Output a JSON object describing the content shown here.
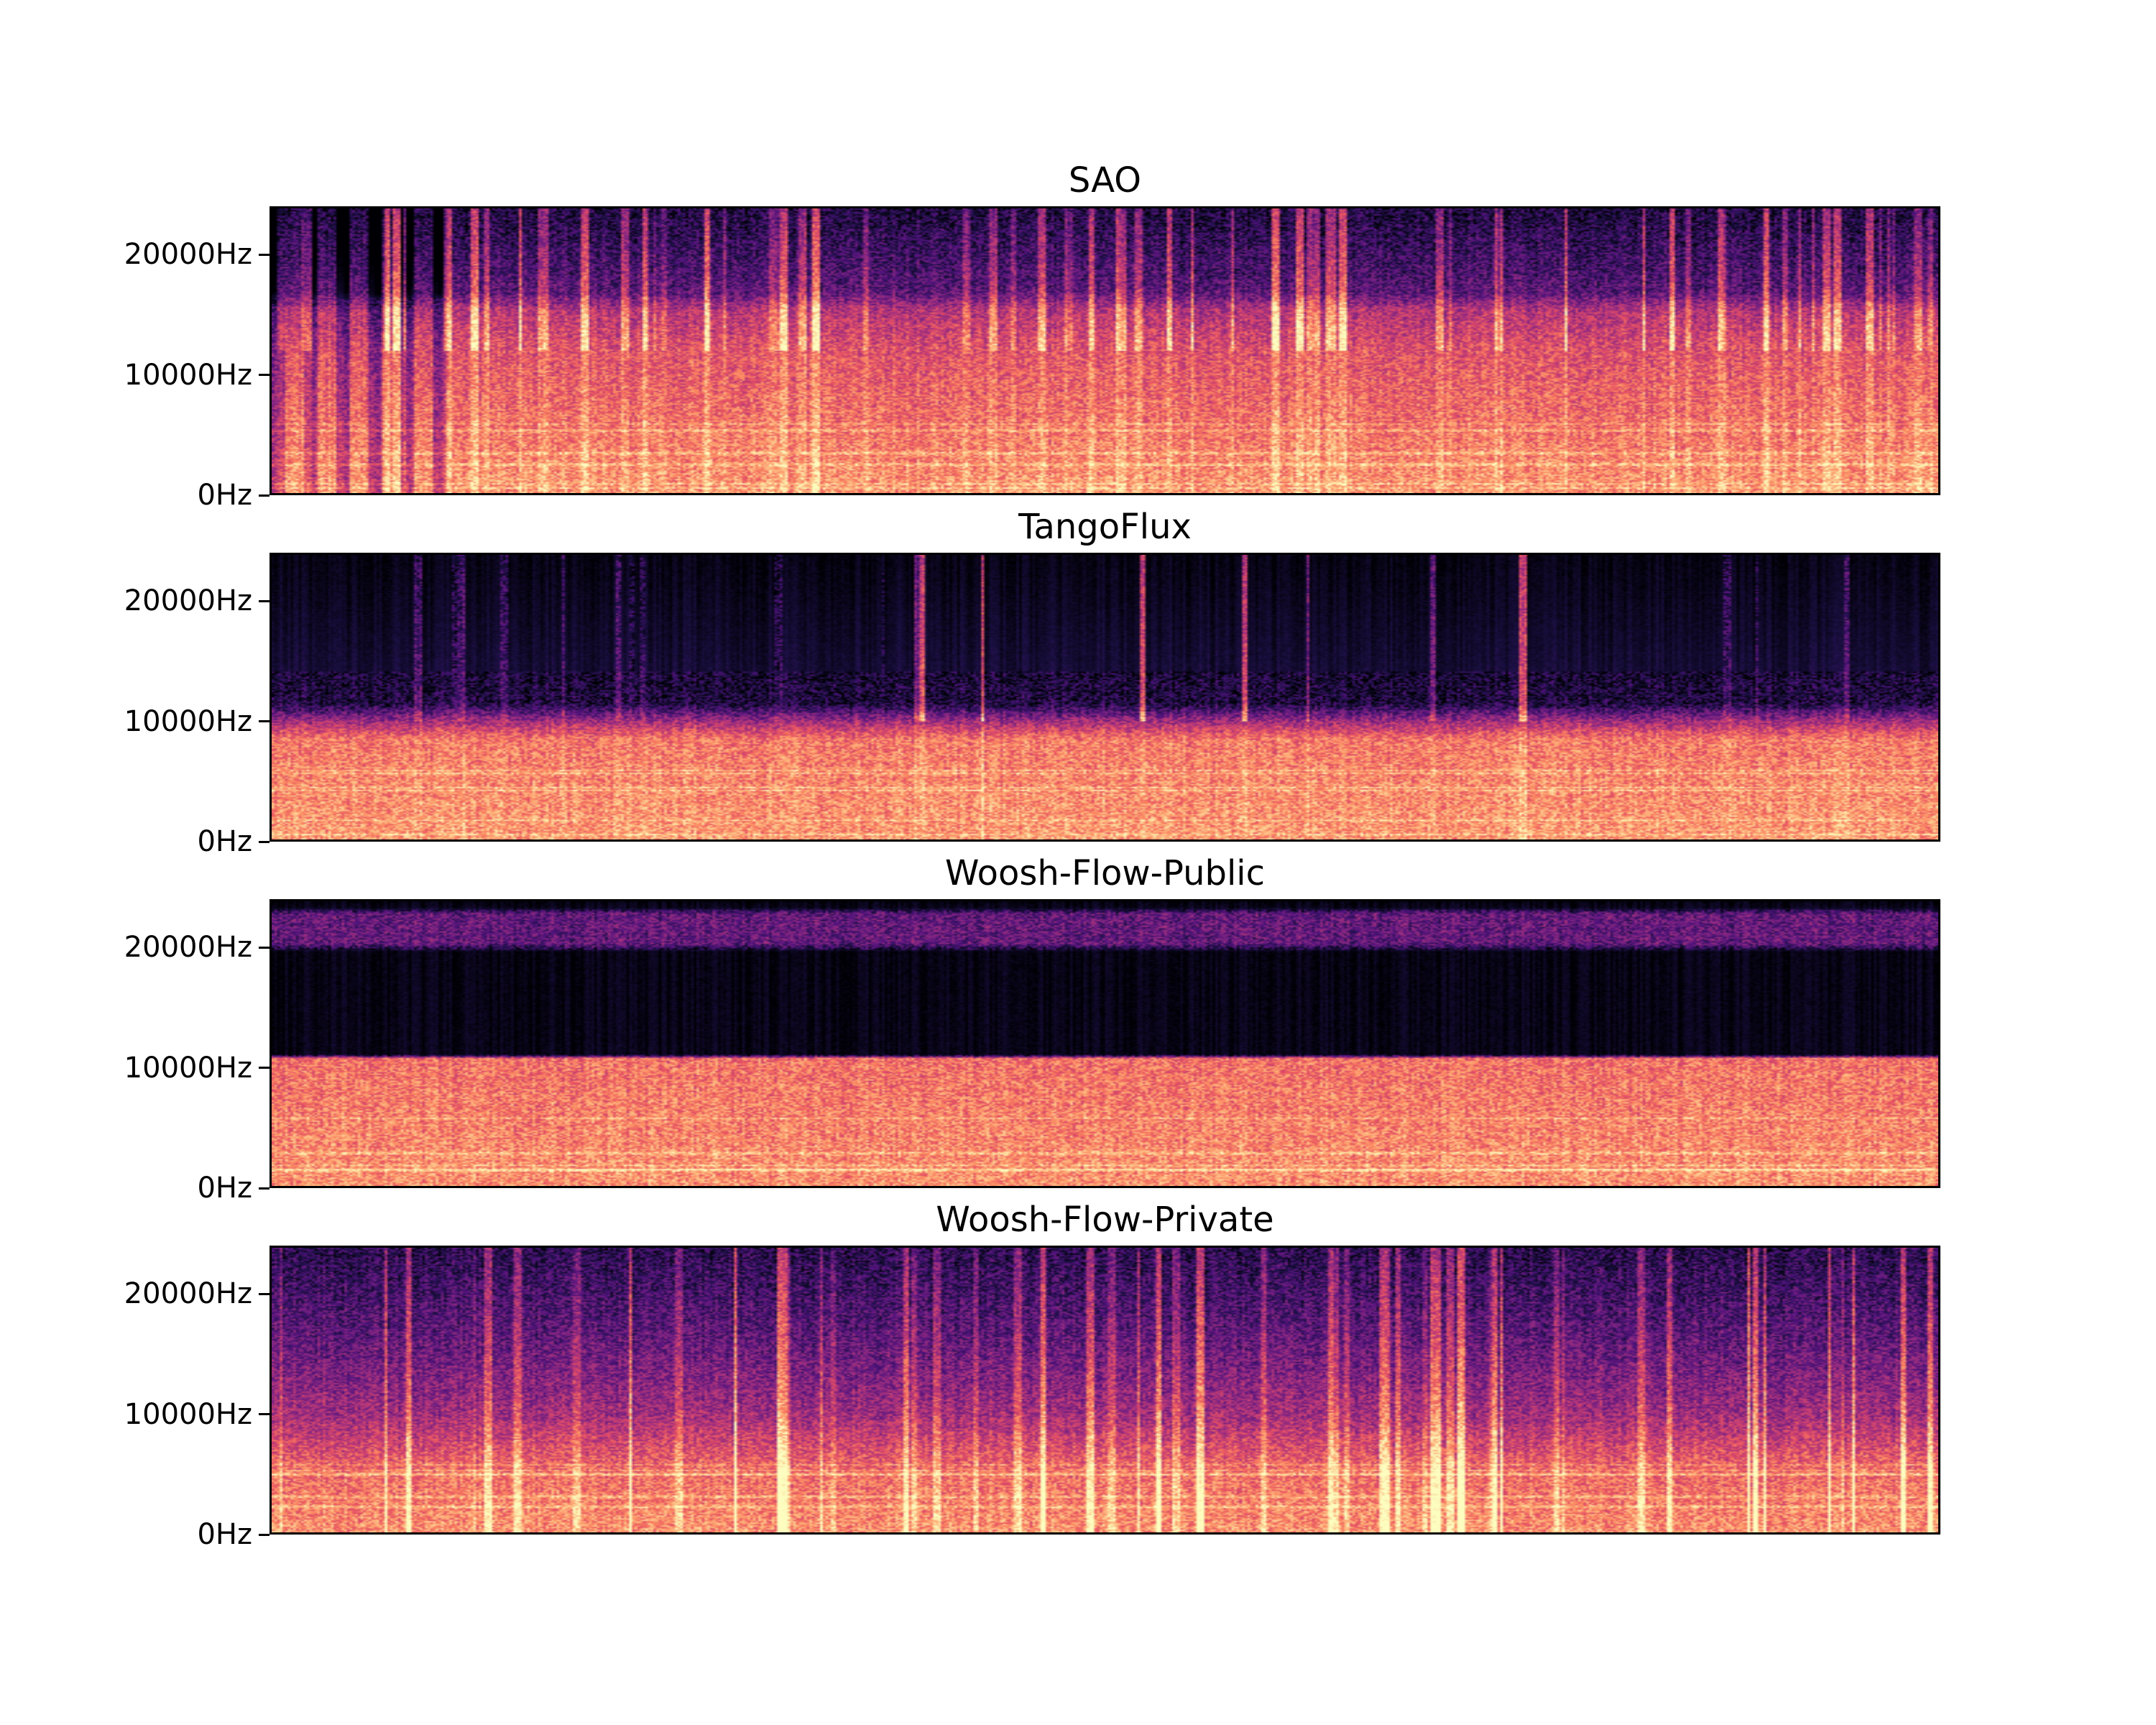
{
  "chart_data": {
    "type": "heatmap",
    "colormap": "magma",
    "ylabel": "",
    "xlabel": "",
    "ylim": [
      0,
      24000
    ],
    "yticks": [
      0,
      10000,
      20000
    ],
    "ytick_labels": [
      "0Hz",
      "10000Hz",
      "20000Hz"
    ],
    "panels": [
      {
        "title": "SAO"
      },
      {
        "title": "TangoFlux"
      },
      {
        "title": "Woosh-Flow-Public"
      },
      {
        "title": "Woosh-Flow-Private"
      }
    ]
  }
}
